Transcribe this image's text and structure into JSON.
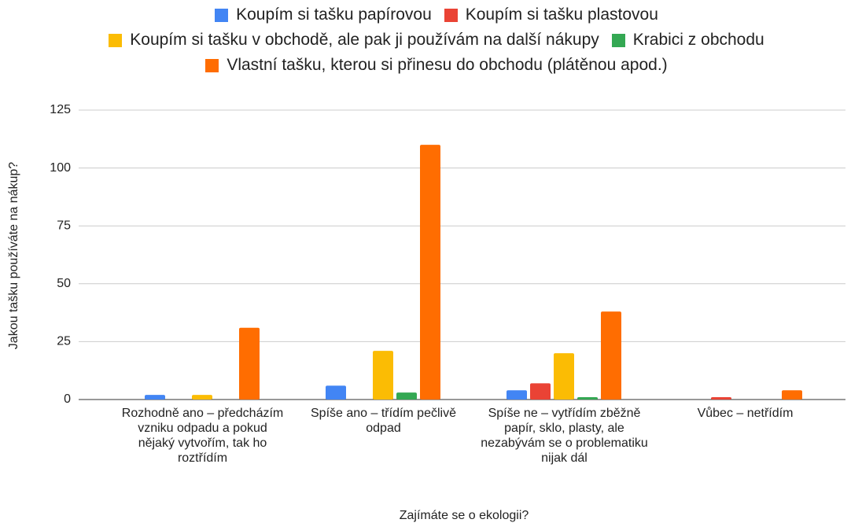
{
  "chart_data": {
    "type": "bar",
    "x_label": "Zajímáte se o ekologii?",
    "y_label": "Jakou tašku používáte na nákup?",
    "categories": [
      "Rozhodně ano – předcházím vzniku odpadu a pokud nějaký vytvořím, tak ho roztřídím",
      "Spíše ano – třídím pečlivě odpad",
      "Spíše ne – vytřídím zběžně papír, sklo, plasty, ale nezabývám se o problematiku nijak dál",
      "Vůbec – netřídím"
    ],
    "series": [
      {
        "name": "Koupím si tašku papírovou",
        "color": "#4285f4",
        "values": [
          2,
          6,
          4,
          0
        ]
      },
      {
        "name": "Koupím si tašku plastovou",
        "color": "#ea4335",
        "values": [
          0,
          0,
          7,
          1
        ]
      },
      {
        "name": "Koupím si tašku v obchodě, ale pak ji používám na další nákupy",
        "color": "#fbbc04",
        "values": [
          2,
          21,
          20,
          0
        ]
      },
      {
        "name": "Krabici z obchodu",
        "color": "#34a853",
        "values": [
          0,
          3,
          1,
          0
        ]
      },
      {
        "name": "Vlastní tašku, kterou si přinesu do obchodu (plátěnou apod.)",
        "color": "#ff6d01",
        "values": [
          31,
          110,
          38,
          4
        ]
      }
    ],
    "ylim": [
      0,
      125
    ],
    "yticks": [
      0,
      25,
      50,
      75,
      100,
      125
    ],
    "grid": true,
    "legend": "top"
  }
}
